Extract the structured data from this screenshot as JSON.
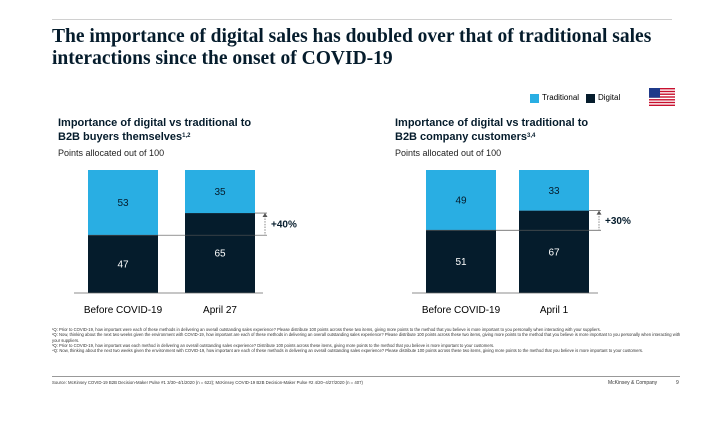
{
  "title": "The importance of digital sales has doubled over that of traditional sales interactions since the onset of COVID-19",
  "legend": {
    "traditional": "Traditional",
    "digital": "Digital"
  },
  "colors": {
    "traditional": "#29aee3",
    "digital": "#051c2c",
    "title": "#051c2c"
  },
  "flag_icon": "us-flag-icon",
  "chart_data": [
    {
      "type": "bar",
      "stacked": true,
      "title": "Importance of digital vs traditional to B2B buyers themselves",
      "title_line1": "Importance of digital vs traditional to",
      "title_line2": "B2B buyers themselves",
      "title_sup": "1,2",
      "subtitle": "Points allocated out of 100",
      "categories": [
        "Before COVID-19",
        "April 27"
      ],
      "series": [
        {
          "name": "Digital",
          "values": [
            47,
            65
          ]
        },
        {
          "name": "Traditional",
          "values": [
            53,
            35
          ]
        }
      ],
      "change_label": "+40%",
      "ylim": [
        0,
        100
      ]
    },
    {
      "type": "bar",
      "stacked": true,
      "title": "Importance of digital vs traditional to B2B company customers",
      "title_line1": "Importance of digital vs traditional to",
      "title_line2": "B2B company customers",
      "title_sup": "3,4",
      "subtitle": "Points allocated out of 100",
      "categories": [
        "Before COVID-19",
        "April 1"
      ],
      "series": [
        {
          "name": "Digital",
          "values": [
            51,
            67
          ]
        },
        {
          "name": "Traditional",
          "values": [
            49,
            33
          ]
        }
      ],
      "change_label": "+30%",
      "ylim": [
        0,
        100
      ]
    }
  ],
  "footnotes": [
    "¹Q: Prior to COVID-19, how important were each of these methods in delivering an overall outstanding sales experience? Please distribute 100 points across these two items, giving more points to the method that you believe is more important to you personally when interacting with your suppliers.",
    "²Q: Now, thinking about the next two weeks given the environment with COVID-19, how important are each of these methods in delivering an overall outstanding sales experience? Please distribute 100 points across these two items, giving more points to the method that you believe is more important to you personally when interacting with your suppliers.",
    "³Q: Prior to COVID-19, how important was each method in delivering an overall outstanding sales experience? Distribute 100 points across these items, giving more points to the method that you believe is more important to your customers.",
    "⁴Q: Now, thinking about the next two weeks given the environment with COVID-19, how important are each of these methods in delivering an overall outstanding sales experience? Please distribute 100 points across these two items, giving more points to the method that you believe is more important to your customers."
  ],
  "source": "Source: McKinsey COVID-19 B2B Decision-Maker Pulse #1 3/30–4/1/2020 (n = 622); McKinsey COVID-19 B2B Decision-Maker Pulse #2 4/20–4/27/2020 (n = 407)",
  "brand": "McKinsey & Company",
  "page_number": "9"
}
